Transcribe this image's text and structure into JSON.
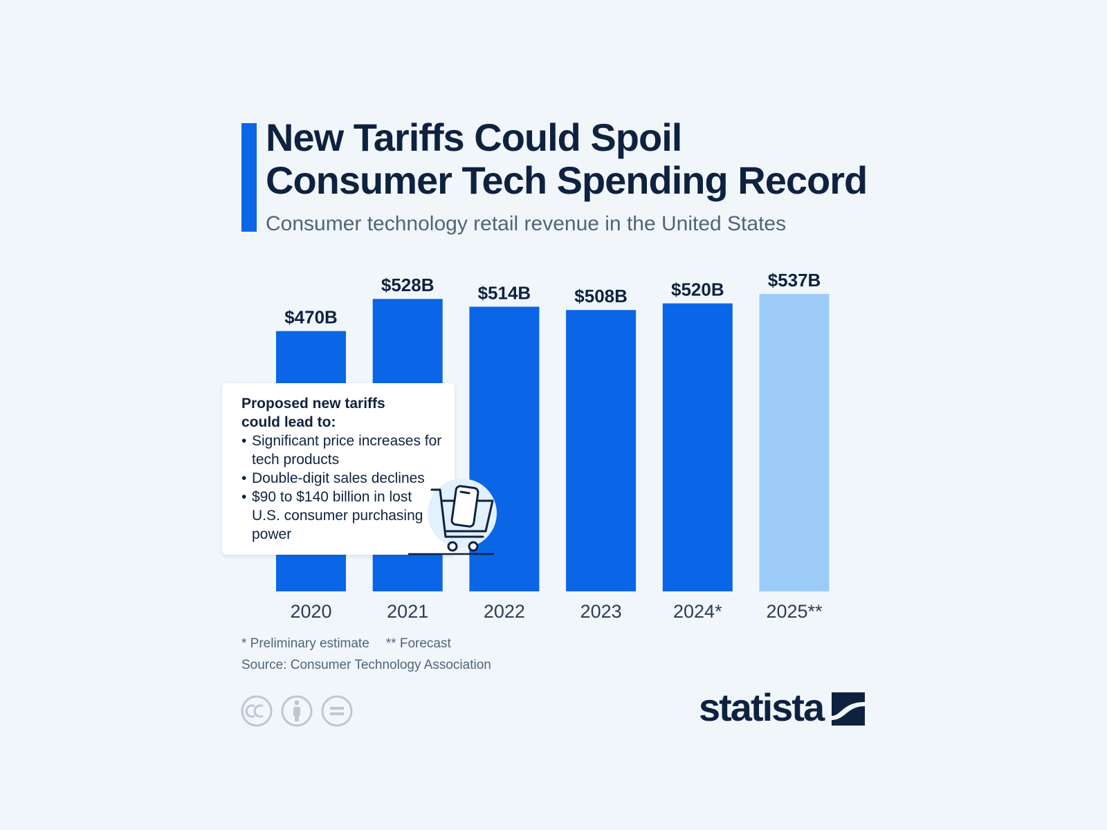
{
  "header": {
    "title_line1": "New Tariffs Could Spoil",
    "title_line2": "Consumer Tech Spending Record",
    "subtitle": "Consumer technology retail revenue in the United States"
  },
  "chart_data": {
    "type": "bar",
    "title": "New Tariffs Could Spoil Consumer Tech Spending Record",
    "subtitle": "Consumer technology retail revenue in the United States",
    "categories": [
      "2020",
      "2021",
      "2022",
      "2023",
      "2024*",
      "2025**"
    ],
    "values": [
      470,
      528,
      514,
      508,
      520,
      537
    ],
    "value_labels": [
      "$470B",
      "$528B",
      "$514B",
      "$508B",
      "$520B",
      "$537B"
    ],
    "unit": "billion U.S. dollars",
    "bar_colors": [
      "#0a66e6",
      "#0a66e6",
      "#0a66e6",
      "#0a66e6",
      "#0a66e6",
      "#9ccbf8"
    ],
    "xlabel": "",
    "ylabel": "",
    "ylim": [
      0,
      537
    ],
    "grid": false,
    "legend": "none"
  },
  "callout": {
    "heading": "Proposed new tariffs could lead to:",
    "items": [
      "Significant price increases for tech products",
      "Double-digit sales declines",
      "$90 to $140 billion in lost U.S. consumer purchasing power"
    ],
    "icon": "shopping-cart-smartphone-icon"
  },
  "footer": {
    "note_preliminary": "* Preliminary estimate",
    "note_forecast": "** Forecast",
    "source": "Source: Consumer Technology Association",
    "license_icons": [
      "creative-commons-icon",
      "attribution-icon",
      "no-derivatives-icon"
    ],
    "brand": "statista"
  },
  "colors": {
    "background": "#f1f6fb",
    "accent": "#0a66e6",
    "forecast": "#9ccbf8",
    "text_dark": "#0e2240",
    "text_muted": "#4f6479"
  }
}
